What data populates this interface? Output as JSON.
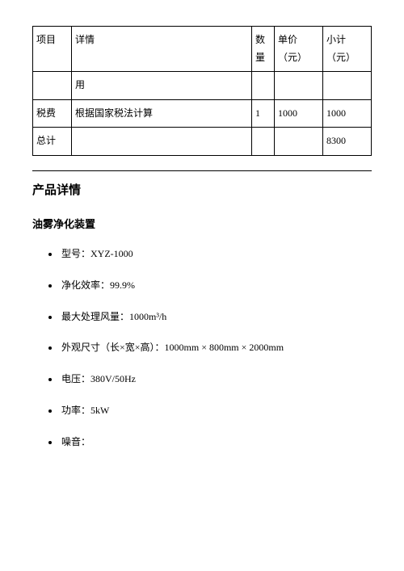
{
  "table": {
    "headers": {
      "project": "项目",
      "detail": "详情",
      "qty": "数量",
      "price": "单价（元）",
      "subtotal": "小计（元）"
    },
    "rows": [
      {
        "project": "",
        "detail": "用",
        "qty": "",
        "price": "",
        "subtotal": ""
      },
      {
        "project": "税费",
        "detail": "根据国家税法计算",
        "qty": "1",
        "price": "1000",
        "subtotal": "1000"
      },
      {
        "project": "总计",
        "detail": "",
        "qty": "",
        "price": "",
        "subtotal": "8300"
      }
    ]
  },
  "section_title": "产品详情",
  "product_name": "油雾净化装置",
  "specs": [
    "型号：XYZ-1000",
    "净化效率：99.9%",
    "最大处理风量：1000m³/h",
    "外观尺寸（长×宽×高）：1000mm × 800mm × 2000mm",
    "电压：380V/50Hz",
    "功率：5kW",
    "噪音："
  ]
}
